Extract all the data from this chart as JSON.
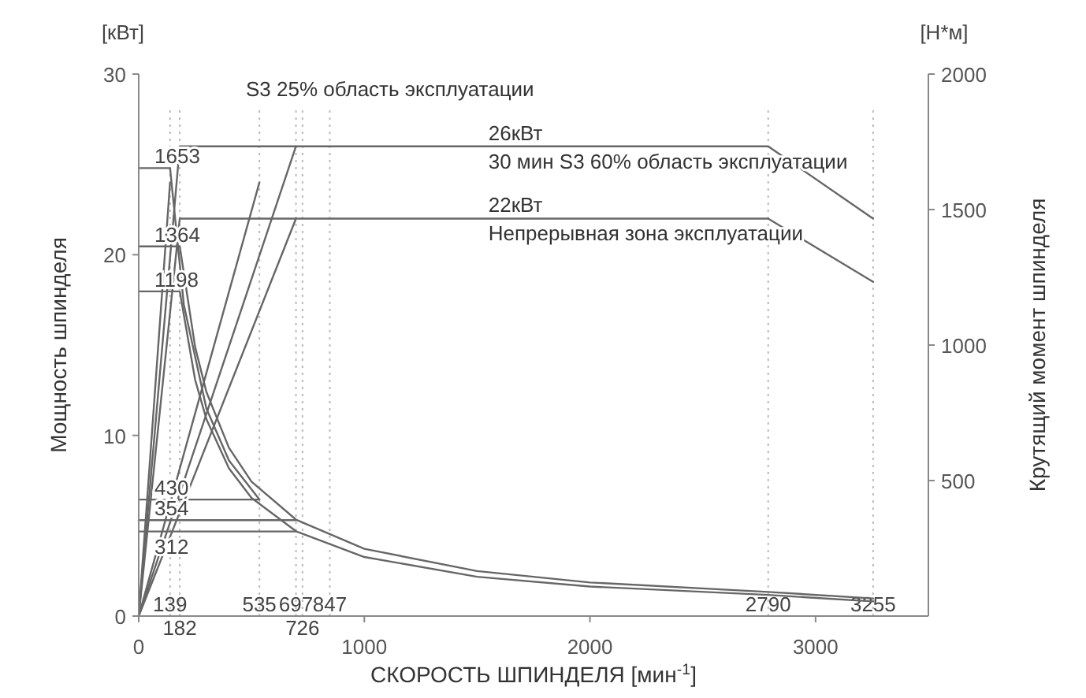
{
  "chart_data": {
    "type": "line",
    "xlabel": "СКОРОСТЬ ШПИНДЕЛЯ [мин$^{-1}$]",
    "ylabel": "Мощность шпинделя",
    "y2label": "Крутящий момент шпинделя",
    "annotations": [
      "[кВт]",
      "[Н*м]",
      "S3 25% область эксплуатации",
      {
        "text": "26кВт",
        "x": 1550,
        "y": 26
      },
      "30 мин S3 60% область эксплуатации",
      {
        "text": "22кВт",
        "x": 1550,
        "y": 22
      },
      "Непрерывная зона эксплуатации"
    ],
    "series": [
      {
        "color": "#666666",
        "x": [
          0,
          182,
          2790,
          3255
        ],
        "values": [
          0,
          26,
          26,
          22
        ]
      },
      {
        "color": "#666666",
        "x": [
          0,
          182,
          2790,
          3255
        ],
        "values": [
          0,
          22,
          22,
          18.5
        ]
      },
      {
        "color": "#666666",
        "x": [
          0,
          139
        ],
        "values": [
          0,
          24
        ]
      },
      {
        "color": "#666666",
        "x": [
          0,
          697
        ],
        "values": [
          0,
          26
        ]
      },
      {
        "color": "#666666",
        "x": [
          0,
          697
        ],
        "values": [
          0,
          22
        ]
      },
      {
        "color": "#666666",
        "x": [
          0,
          535
        ],
        "values": [
          0,
          24
        ]
      },
      {
        "color": "#666666",
        "axis": "y2",
        "x": [
          0,
          139,
          200,
          300,
          400,
          535
        ],
        "values": [
          1653,
          1653,
          1149,
          766,
          574,
          430
        ],
        "value_labels": [
          "1653",
          null,
          null,
          null,
          null,
          null
        ]
      },
      {
        "color": "#666666",
        "axis": "y2",
        "x": [
          0,
          182,
          250,
          300,
          400,
          500,
          697,
          1000,
          1500,
          2000,
          2790,
          3255
        ],
        "values": [
          1364,
          1364,
          993,
          827,
          621,
          496,
          356,
          248,
          166,
          124,
          89,
          65
        ],
        "value_labels": [
          "1364",
          null,
          null,
          null,
          null,
          null,
          null,
          null,
          null,
          null,
          null,
          null
        ]
      },
      {
        "color": "#666666",
        "axis": "y2",
        "x": [
          0,
          182,
          250,
          300,
          400,
          500,
          697,
          1000,
          1500,
          2000,
          2790,
          3255
        ],
        "values": [
          1198,
          1198,
          872,
          727,
          545,
          436,
          313,
          218,
          145,
          109,
          78,
          54
        ],
        "value_labels": [
          "1198",
          null,
          null,
          null,
          null,
          null,
          null,
          null,
          null,
          null,
          null,
          null
        ]
      },
      {
        "color": "#666666",
        "axis": "y2",
        "x": [
          0,
          535
        ],
        "values": [
          430,
          430
        ],
        "value_labels": [
          "430",
          null
        ]
      },
      {
        "color": "#666666",
        "axis": "y2",
        "x": [
          0,
          697
        ],
        "values": [
          354,
          354
        ],
        "value_labels": [
          "354",
          null
        ]
      },
      {
        "color": "#666666",
        "axis": "y2",
        "x": [
          0,
          697
        ],
        "values": [
          312,
          312
        ],
        "value_labels": [
          "312",
          null
        ]
      }
    ],
    "ref_lines": [
      {
        "axis": "x",
        "value": 139,
        "label": "139",
        "color": "#bbbbbb",
        "line_style": "dotted"
      },
      {
        "axis": "x",
        "value": 182,
        "label": "182",
        "color": "#bbbbbb",
        "line_style": "dotted"
      },
      {
        "axis": "x",
        "value": 535,
        "label": "535",
        "color": "#bbbbbb",
        "line_style": "dotted"
      },
      {
        "axis": "x",
        "value": 697,
        "label": "697",
        "color": "#bbbbbb",
        "line_style": "dotted"
      },
      {
        "axis": "x",
        "value": 726,
        "label": "726",
        "color": "#bbbbbb",
        "line_style": "dotted"
      },
      {
        "axis": "x",
        "value": 847,
        "label": "847",
        "color": "#bbbbbb",
        "line_style": "dotted"
      },
      {
        "axis": "x",
        "value": 2790,
        "label": "2790",
        "color": "#bbbbbb",
        "line_style": "dotted"
      },
      {
        "axis": "x",
        "value": 3255,
        "label": "3255",
        "color": "#bbbbbb",
        "line_style": "dotted"
      }
    ],
    "xlim": [
      0,
      3500
    ],
    "xticks": [
      0,
      1000,
      2000,
      3000
    ],
    "ylim": [
      0,
      30
    ],
    "yticks": [
      0,
      10,
      20,
      30
    ],
    "y2lim": [
      0,
      2000
    ],
    "y2ticks": [
      500,
      1000,
      1500,
      2000
    ],
    "line_style": "solid",
    "marker": "none",
    "grid": false
  }
}
